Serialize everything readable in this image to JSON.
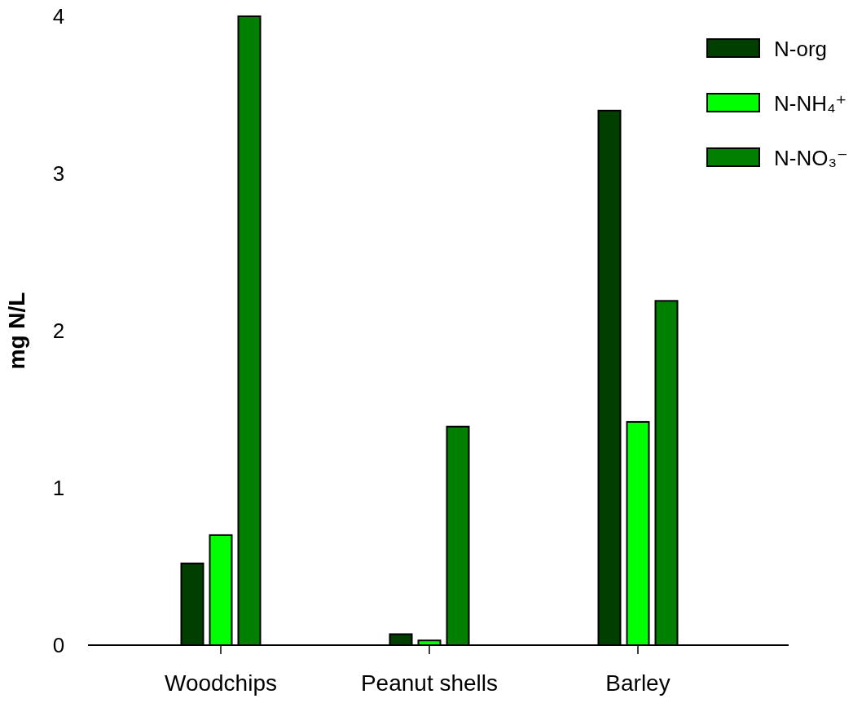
{
  "chart_data": {
    "type": "bar",
    "ylabel": "mg N/L",
    "categories": [
      "Woodchips",
      "Peanut shells",
      "Barley"
    ],
    "series": [
      {
        "name": "N-org",
        "color": "#003f00",
        "values": [
          0.52,
          0.07,
          3.4
        ]
      },
      {
        "name": "N-NH₄⁺",
        "color": "#00ff00",
        "values": [
          0.7,
          0.03,
          1.42
        ]
      },
      {
        "name": "N-NO₃⁻",
        "color": "#007f00",
        "values": [
          4.0,
          1.39,
          2.19
        ]
      }
    ],
    "ylim": [
      0,
      4
    ],
    "yticks": [
      0,
      1,
      2,
      3,
      4
    ],
    "grid": false,
    "legend": "top right"
  }
}
